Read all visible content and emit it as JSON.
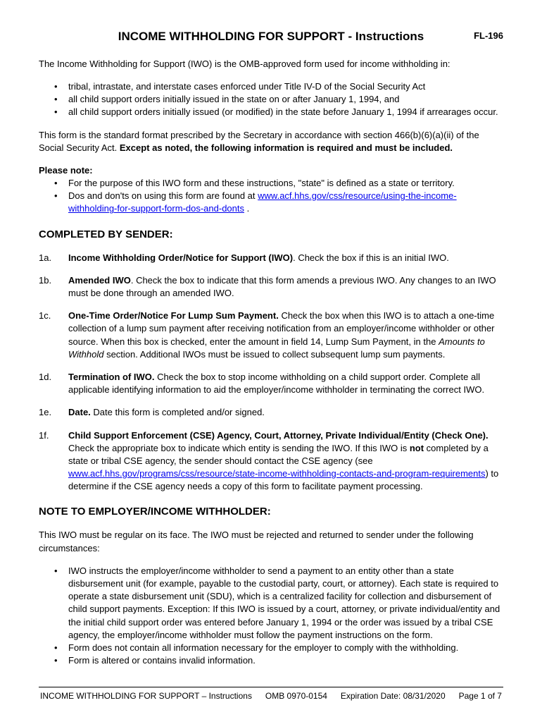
{
  "header": {
    "title": "INCOME WITHHOLDING FOR SUPPORT - Instructions",
    "formCode": "FL-196"
  },
  "intro": {
    "lead": "The Income Withholding for Support (IWO) is the OMB-approved form used for income withholding in:",
    "bullets": [
      "tribal, intrastate, and interstate cases enforced under Title IV-D of the Social Security Act",
      "all child support orders initially issued in the state on or after January 1, 1994, and",
      "all child support orders initially issued (or modified) in the state before January 1, 1994 if arrearages occur."
    ]
  },
  "standard": {
    "pre": "This form is the standard format prescribed by the Secretary in accordance with section 466(b)(6)(a)(ii) of the Social Security Act. ",
    "bold": "Except as noted, the following information is required and must be included."
  },
  "pleaseNote": {
    "label": "Please note:",
    "b1": "For the purpose of this IWO form and these instructions, \"state\" is defined as a state or territory.",
    "b2pre": "Dos and don'ts on using this form are found at  ",
    "b2link": "www.acf.hhs.gov/css/resource/using-the-income-withholding-for-support-form-dos-and-donts",
    "b2post": " ."
  },
  "completedBy": {
    "heading": "COMPLETED BY SENDER:",
    "items": {
      "a": {
        "num": "1a.",
        "bold": "Income Withholding Order/Notice for Support (IWO)",
        "rest": ". Check the box if this is an initial IWO."
      },
      "b": {
        "num": "1b.",
        "bold": "Amended IWO",
        "rest": ". Check the box to indicate that this form amends a previous IWO. Any changes to an IWO must be done through an amended IWO."
      },
      "c": {
        "num": "1c.",
        "bold": "One-Time Order/Notice For Lump Sum Payment.",
        "rest1": " Check the box when this IWO is to attach a one-time collection of a lump sum payment after receiving notification from an employer/income withholder or other source.  When this box is checked, enter the amount in field 14, Lump Sum Payment, in the ",
        "italic": "Amounts to Withhold",
        "rest2": " section. Additional IWOs must be issued to collect subsequent lump sum payments."
      },
      "d": {
        "num": "1d.",
        "bold": "Termination of IWO.",
        "rest": " Check the box to stop income withholding on a child support order. Complete all applicable identifying information to aid the employer/income withholder in terminating the correct IWO."
      },
      "e": {
        "num": "1e.",
        "bold": "Date.",
        "rest": "  Date this form is completed and/or signed."
      },
      "f": {
        "num": "1f.",
        "bold": "Child Support Enforcement (CSE) Agency, Court, Attorney, Private Individual/Entity (Check One).",
        "rest1": "  Check the appropriate box to indicate which entity is sending the IWO. If this IWO is ",
        "notBold": "not",
        "rest2": " completed by a state or tribal CSE agency, the sender should contact the CSE agency (see ",
        "link": "www.acf.hhs.gov/programs/css/resource/state-income-withholding-contacts-and-program-requirements",
        "rest3": ") to determine if the CSE agency needs a copy of this form to facilitate payment processing."
      }
    }
  },
  "noteEmployer": {
    "heading": "NOTE TO EMPLOYER/INCOME WITHHOLDER:",
    "lead": "This IWO must be regular on its face.  The IWO must be rejected and returned to sender under the following circumstances:",
    "bullets": [
      "IWO instructs the employer/income withholder to send a payment to an entity other than a state disbursement unit (for example, payable to the custodial party, court, or attorney).  Each state is required to operate a state disbursement unit (SDU), which is a centralized facility for collection and disbursement of child support payments.  Exception: If this IWO is issued by a court, attorney, or private individual/entity and the initial child support order was entered before January 1, 1994 or the order was issued by a tribal CSE agency, the employer/income withholder must follow the payment instructions on the form.",
      "Form does not contain all information necessary for the employer to comply with the withholding.",
      "Form is altered or contains invalid information."
    ]
  },
  "footer": {
    "left": "INCOME WITHHOLDING FOR SUPPORT – Instructions",
    "center": "OMB 0970-0154",
    "right": "Expiration Date:  08/31/2020",
    "page": "Page 1 of 7"
  }
}
